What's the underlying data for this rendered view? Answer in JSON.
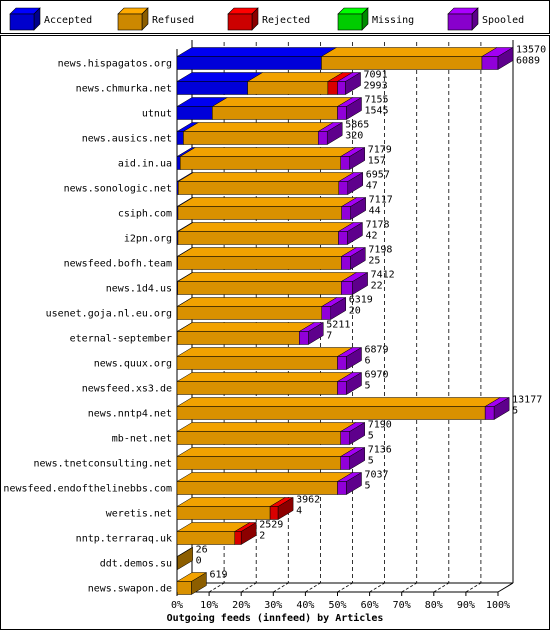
{
  "chart_data": {
    "type": "bar",
    "orientation": "horizontal",
    "stacked": true,
    "title": "",
    "xlabel": "Outgoing feeds (innfeed) by Articles",
    "ylabel": "",
    "xlim": [
      0,
      100
    ],
    "x_ticks": [
      "0%",
      "10%",
      "20%",
      "30%",
      "40%",
      "50%",
      "60%",
      "70%",
      "80%",
      "90%",
      "100%"
    ],
    "grid": "vertical dashed lines",
    "legend_position": "top",
    "legend": [
      {
        "name": "Accepted",
        "color": "#0000ff"
      },
      {
        "name": "Refused",
        "color": "#ffaa00"
      },
      {
        "name": "Rejected",
        "color": "#ff0000"
      },
      {
        "name": "Missing",
        "color": "#00ff00"
      },
      {
        "name": "Spooled",
        "color": "#aa00ff"
      }
    ],
    "categories": [
      "news.hispagatos.org",
      "news.chmurka.net",
      "utnut",
      "news.ausics.net",
      "aid.in.ua",
      "news.sonologic.net",
      "csiph.com",
      "i2pn.org",
      "newsfeed.bofh.team",
      "news.1d4.us",
      "usenet.goja.nl.eu.org",
      "eternal-september",
      "news.quux.org",
      "newsfeed.xs3.de",
      "news.nntp4.net",
      "mb-net.net",
      "news.tnetconsulting.net",
      "newsfeed.endofthelinebbs.com",
      "weretis.net",
      "nntp.terraraq.uk",
      "ddt.demos.su",
      "news.swapon.de"
    ],
    "offered": [
      "13570",
      "7091",
      "7155",
      "5865",
      "7179",
      "6957",
      "7117",
      "7178",
      "7198",
      "7412",
      "6319",
      "5211",
      "6879",
      "6970",
      "13177",
      "7190",
      "7136",
      "7037",
      "3962",
      "2529",
      "26",
      "619"
    ],
    "accepted_counts": [
      "6089",
      "2993",
      "1545",
      "320",
      "157",
      "47",
      "44",
      "42",
      "25",
      "22",
      "20",
      "7",
      "6",
      "5",
      "5",
      "5",
      "5",
      "5",
      "4",
      "2",
      "0",
      ""
    ],
    "series": [
      {
        "name": "Accepted",
        "values": [
          45,
          22,
          11,
          2,
          1,
          0.4,
          0.3,
          0.3,
          0.2,
          0.2,
          0.1,
          0.1,
          0,
          0,
          0,
          0,
          0,
          0,
          0,
          0,
          0,
          0
        ]
      },
      {
        "name": "Refused",
        "values": [
          50,
          25,
          39,
          42,
          50,
          50,
          51,
          50,
          51,
          51,
          45,
          38,
          50,
          50,
          96,
          51,
          51,
          50,
          29,
          18,
          0.2,
          4.5
        ]
      },
      {
        "name": "Rejected",
        "values": [
          0,
          3,
          0,
          0,
          0,
          0,
          0,
          0,
          0,
          0,
          0,
          0,
          0,
          0,
          0,
          0,
          0,
          0,
          2.5,
          2,
          0,
          0
        ]
      },
      {
        "name": "Missing",
        "values": [
          0,
          0,
          0,
          0,
          0,
          0,
          0,
          0,
          0,
          0,
          0,
          0,
          0,
          0,
          0,
          0,
          0,
          0,
          0,
          0,
          0,
          0
        ]
      },
      {
        "name": "Spooled",
        "values": [
          5,
          2.5,
          2.8,
          2.8,
          2.8,
          2.8,
          2.8,
          2.8,
          2.8,
          3.5,
          2.8,
          2.8,
          2.8,
          2.8,
          2.8,
          2.8,
          2.8,
          2.8,
          0,
          0,
          0,
          0
        ]
      }
    ]
  }
}
